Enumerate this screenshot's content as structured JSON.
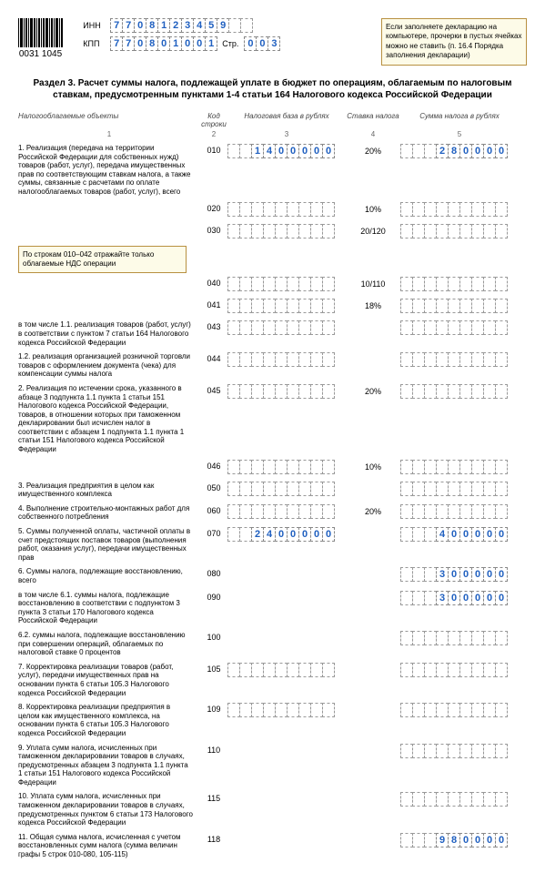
{
  "header": {
    "barcode_number": "0031 1045",
    "inn_label": "ИНН",
    "kpp_label": "КПП",
    "str_label": "Стр.",
    "inn": [
      "7",
      "7",
      "0",
      "8",
      "1",
      "2",
      "3",
      "4",
      "5",
      "9",
      "",
      ""
    ],
    "kpp": [
      "7",
      "7",
      "0",
      "8",
      "0",
      "1",
      "0",
      "0",
      "1"
    ],
    "page": [
      "0",
      "0",
      "3"
    ],
    "note": "Если заполняете декларацию на компьютере, прочерки в пустых ячейках можно не ставить (п. 16.4 Порядка заполнения декларации)"
  },
  "section_title": "Раздел 3. Расчет суммы налога, подлежащей уплате в бюджет по операциям, облагаемым по налоговым ставкам, предусмотренным пунктами 1-4 статьи 164 Налогового кодекса Российской Федерации",
  "columns": {
    "c1": "Налогооблагаемые объекты",
    "c2": "Код строки",
    "c3": "Налоговая база в рублях",
    "c4": "Ставка налога",
    "c5": "Сумма налога в рублях",
    "n1": "1",
    "n2": "2",
    "n3": "3",
    "n4": "4",
    "n5": "5"
  },
  "callout_010": "По строкам 010–042 отражайте только облагаемые НДС операции",
  "rows": [
    {
      "desc": "1. Реализация (передача на территории Российской Федерации для собственных нужд) товаров (работ, услуг), передача имущественных прав по соответствующим ставкам налога, а также суммы, связанные с расчетами по оплате налогооблагаемых товаров (работ, услуг), всего",
      "code": "010",
      "base": [
        "1",
        "4",
        "0",
        "0",
        "0",
        "0",
        "0"
      ],
      "rate": "20%",
      "sum": [
        "2",
        "8",
        "0",
        "0",
        "0",
        "0"
      ]
    },
    {
      "desc": "",
      "code": "020",
      "base": [],
      "rate": "10%",
      "sum": []
    },
    {
      "desc": "",
      "code": "030",
      "base": [],
      "rate": "20/120",
      "sum": []
    },
    {
      "desc": "",
      "code": "040",
      "base": [],
      "rate": "10/110",
      "sum": []
    },
    {
      "desc": "",
      "code": "041",
      "base": [],
      "rate": "18%",
      "sum": []
    },
    {
      "desc": "в том числе\n1.1. реализация товаров (работ, услуг) в соответствии с пунктом 7 статьи 164 Налогового кодекса Российской Федерации",
      "code": "043",
      "base": [],
      "rate": "",
      "sum": []
    },
    {
      "desc": "1.2. реализация организацией розничной торговли товаров с оформлением документа (чека) для компенсации суммы налога",
      "code": "044",
      "base": [],
      "rate": "",
      "sum": []
    },
    {
      "desc": "2. Реализация по истечении срока, указанного в абзаце 3 подпункта 1.1 пункта 1 статьи 151 Налогового кодекса Российской Федерации, товаров, в отношении которых при таможенном декларировании был исчислен налог в соответствии с абзацем 1 подпункта 1.1 пункта 1 статьи 151 Налогового кодекса Российской Федерации",
      "code": "045",
      "base": [],
      "rate": "20%",
      "sum": []
    },
    {
      "desc": "",
      "code": "046",
      "base": [],
      "rate": "10%",
      "sum": []
    },
    {
      "desc": "3. Реализация предприятия в целом как имущественного комплекса",
      "code": "050",
      "base": [],
      "rate": "",
      "sum": []
    },
    {
      "desc": "4. Выполнение строительно-монтажных работ для собственного потребления",
      "code": "060",
      "base": [],
      "rate": "20%",
      "sum": []
    },
    {
      "desc": "5. Суммы полученной оплаты, частичной оплаты в счет предстоящих поставок товаров (выполнения работ, оказания услуг), передачи имущественных прав",
      "code": "070",
      "base": [
        "2",
        "4",
        "0",
        "0",
        "0",
        "0",
        "0"
      ],
      "rate": "",
      "sum": [
        "4",
        "0",
        "0",
        "0",
        "0",
        "0"
      ]
    },
    {
      "desc": "6. Суммы налога, подлежащие восстановлению, всего",
      "code": "080",
      "base": null,
      "rate": "",
      "sum": [
        "3",
        "0",
        "0",
        "0",
        "0",
        "0"
      ]
    },
    {
      "desc": "в том числе\n6.1. суммы налога, подлежащие восстановлению в соответствии с подпунктом 3 пункта 3 статьи 170 Налогового кодекса Российской Федерации",
      "code": "090",
      "base": null,
      "rate": "",
      "sum": [
        "3",
        "0",
        "0",
        "0",
        "0",
        "0"
      ]
    },
    {
      "desc": "6.2. суммы налога, подлежащие восстановлению при совершении операций, облагаемых по налоговой ставке 0 процентов",
      "code": "100",
      "base": null,
      "rate": "",
      "sum": []
    },
    {
      "desc": "7. Корректировка реализации товаров (работ, услуг), передачи имущественных прав на основании пункта 6 статьи 105.3 Налогового кодекса Российской Федерации",
      "code": "105",
      "base": [],
      "rate": "",
      "sum": []
    },
    {
      "desc": "8. Корректировка реализации предприятия в целом как имущественного комплекса, на основании пункта 6 статьи 105.3 Налогового кодекса Российской Федерации",
      "code": "109",
      "base": [],
      "rate": "",
      "sum": []
    },
    {
      "desc": "9. Уплата сумм налога, исчисленных при таможенном декларировании товаров в случаях, предусмотренных абзацем 3 подпункта 1.1 пункта 1 статьи 151 Налогового кодекса Российской Федерации",
      "code": "110",
      "base": null,
      "rate": "",
      "sum": []
    },
    {
      "desc": "10. Уплата сумм налога, исчисленных при таможенном декларировании товаров в случаях, предусмотренных пунктом 6 статьи 173 Налогового кодекса Российской Федерации",
      "code": "115",
      "base": null,
      "rate": "",
      "sum": []
    },
    {
      "desc": "11. Общая сумма налога, исчисленная с учетом восстановленных сумм налога (сумма величин графы 5 строк 010-080, 105-115)",
      "code": "118",
      "base": null,
      "rate": "",
      "sum": [
        "9",
        "8",
        "0",
        "0",
        "0",
        "0"
      ]
    }
  ],
  "empty_cells_base": 9,
  "empty_cells_sum": 9,
  "colors": {
    "blue": "#2060c0",
    "callout_bg": "#fdfbe8",
    "callout_border": "#b89040"
  }
}
